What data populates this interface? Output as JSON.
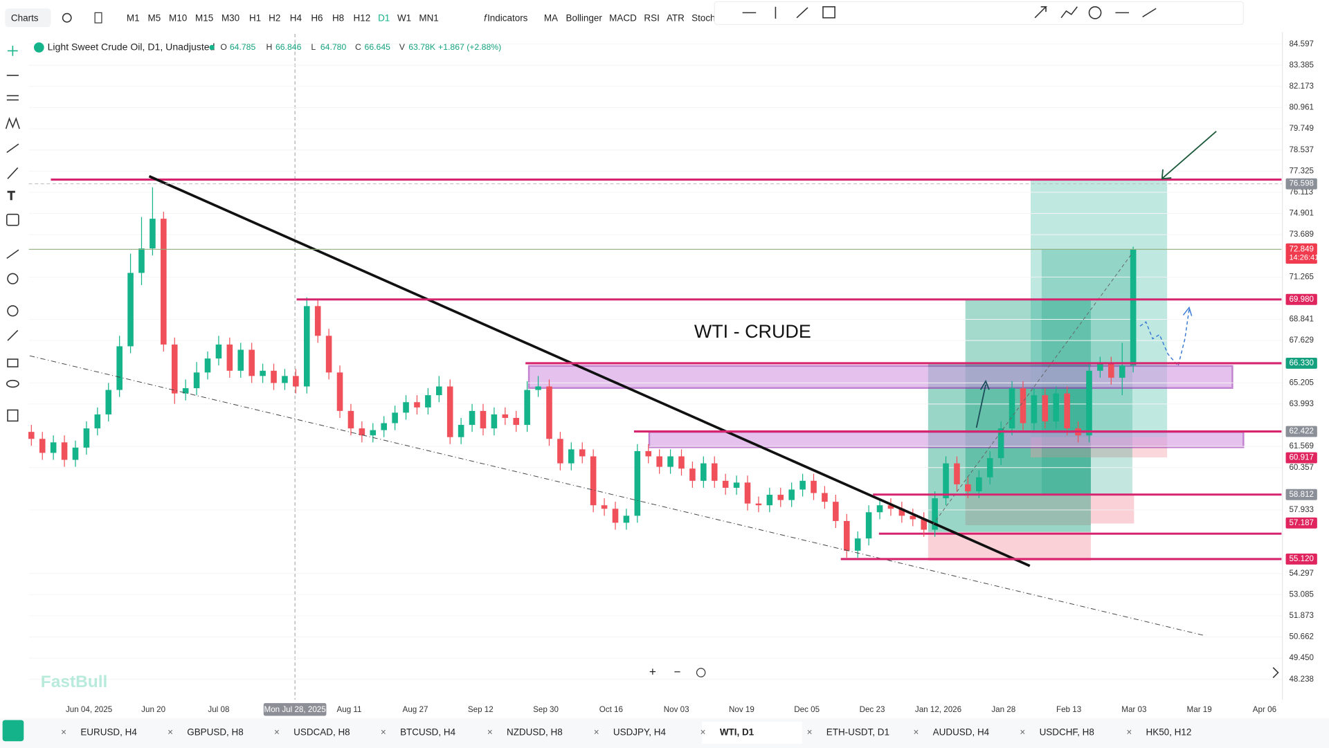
{
  "toolbar": {
    "charts": "Charts",
    "timeframes": [
      "M1",
      "M5",
      "M10",
      "M15",
      "M30",
      "H1",
      "H2",
      "H4",
      "H6",
      "H8",
      "H12",
      "D1",
      "W1",
      "MN1"
    ],
    "active_timeframe": "D1",
    "indicators": "Indicators",
    "studies": [
      "MA",
      "Bollinger",
      "MACD",
      "RSI",
      "ATR",
      "Stoch"
    ]
  },
  "legend": {
    "symbol": "Light Sweet Crude Oil, D1, Unadjusted",
    "items": [
      {
        "key": "O",
        "value": "64.785"
      },
      {
        "key": "H",
        "value": "66.846"
      },
      {
        "key": "L",
        "value": "64.780"
      },
      {
        "key": "C",
        "value": "66.645"
      },
      {
        "key": "V",
        "value": "63.78K"
      }
    ],
    "change": "+1.867 (+2.88%)"
  },
  "chart_data": {
    "type": "candlestick",
    "title": "WTI - CRUDE",
    "watermark": "FastBull",
    "up_color": "#14b38a",
    "down_color": "#f0505a",
    "candles": [
      [
        62.4,
        62.8,
        61.6,
        62.0
      ],
      [
        62.0,
        62.4,
        60.8,
        61.2
      ],
      [
        61.2,
        62.2,
        60.8,
        61.8
      ],
      [
        61.8,
        62.2,
        60.4,
        60.8
      ],
      [
        60.8,
        61.9,
        60.4,
        61.5
      ],
      [
        61.5,
        63.0,
        61.1,
        62.6
      ],
      [
        62.6,
        63.8,
        62.2,
        63.4
      ],
      [
        63.4,
        65.2,
        63.0,
        64.8
      ],
      [
        64.8,
        67.9,
        64.4,
        67.3
      ],
      [
        67.3,
        72.6,
        66.9,
        71.5
      ],
      [
        71.5,
        74.7,
        70.8,
        72.9
      ],
      [
        72.9,
        76.4,
        72.5,
        74.6
      ],
      [
        74.6,
        75.0,
        67.0,
        67.4
      ],
      [
        67.4,
        67.8,
        64.0,
        64.6
      ],
      [
        64.6,
        65.4,
        64.2,
        64.9
      ],
      [
        64.9,
        66.4,
        64.5,
        65.8
      ],
      [
        65.8,
        67.0,
        65.4,
        66.6
      ],
      [
        66.6,
        67.9,
        66.2,
        67.4
      ],
      [
        67.4,
        67.8,
        65.5,
        65.9
      ],
      [
        65.9,
        67.5,
        65.5,
        67.1
      ],
      [
        67.1,
        67.5,
        65.2,
        65.6
      ],
      [
        65.6,
        66.3,
        65.2,
        65.9
      ],
      [
        65.9,
        66.3,
        64.8,
        65.2
      ],
      [
        65.2,
        66.0,
        64.8,
        65.6
      ],
      [
        65.6,
        66.0,
        64.6,
        65.0
      ],
      [
        65.0,
        70.1,
        64.6,
        69.6
      ],
      [
        69.6,
        70.0,
        67.5,
        67.9
      ],
      [
        67.9,
        68.3,
        65.4,
        65.8
      ],
      [
        65.8,
        66.2,
        63.2,
        63.6
      ],
      [
        63.6,
        64.0,
        62.2,
        62.6
      ],
      [
        62.6,
        63.0,
        61.8,
        62.2
      ],
      [
        62.2,
        62.9,
        61.8,
        62.5
      ],
      [
        62.5,
        63.3,
        62.1,
        62.9
      ],
      [
        62.9,
        63.9,
        62.5,
        63.5
      ],
      [
        63.5,
        64.5,
        63.1,
        64.1
      ],
      [
        64.1,
        64.5,
        63.4,
        63.8
      ],
      [
        63.8,
        64.9,
        63.4,
        64.5
      ],
      [
        64.5,
        65.6,
        64.1,
        65.0
      ],
      [
        65.0,
        65.4,
        61.7,
        62.1
      ],
      [
        62.1,
        63.2,
        61.7,
        62.8
      ],
      [
        62.8,
        64.0,
        62.4,
        63.6
      ],
      [
        63.6,
        64.0,
        62.2,
        62.6
      ],
      [
        62.6,
        63.8,
        62.2,
        63.4
      ],
      [
        63.4,
        63.8,
        62.8,
        63.2
      ],
      [
        63.2,
        63.6,
        62.4,
        62.8
      ],
      [
        62.8,
        65.3,
        62.4,
        64.8
      ],
      [
        64.8,
        65.6,
        64.4,
        65.0
      ],
      [
        65.0,
        65.4,
        61.6,
        62.0
      ],
      [
        62.0,
        62.4,
        60.2,
        60.6
      ],
      [
        60.6,
        61.8,
        60.2,
        61.4
      ],
      [
        61.4,
        61.8,
        60.6,
        61.0
      ],
      [
        61.0,
        61.4,
        57.8,
        58.2
      ],
      [
        58.2,
        58.6,
        57.6,
        58.0
      ],
      [
        58.0,
        58.4,
        56.8,
        57.2
      ],
      [
        57.2,
        58.0,
        56.8,
        57.6
      ],
      [
        57.6,
        61.7,
        57.2,
        61.3
      ],
      [
        61.3,
        61.7,
        60.6,
        61.0
      ],
      [
        61.0,
        61.4,
        60.0,
        60.4
      ],
      [
        60.4,
        61.4,
        60.0,
        61.0
      ],
      [
        61.0,
        61.4,
        59.9,
        60.3
      ],
      [
        60.3,
        60.7,
        59.2,
        59.6
      ],
      [
        59.6,
        61.0,
        59.2,
        60.6
      ],
      [
        60.6,
        61.0,
        59.2,
        59.6
      ],
      [
        59.6,
        60.0,
        58.8,
        59.2
      ],
      [
        59.2,
        59.9,
        58.8,
        59.5
      ],
      [
        59.5,
        59.9,
        57.9,
        58.3
      ],
      [
        58.3,
        58.7,
        57.8,
        58.2
      ],
      [
        58.2,
        59.2,
        57.8,
        58.8
      ],
      [
        58.8,
        59.2,
        58.1,
        58.5
      ],
      [
        58.5,
        59.5,
        58.1,
        59.1
      ],
      [
        59.1,
        60.0,
        58.7,
        59.6
      ],
      [
        59.6,
        60.0,
        58.5,
        58.9
      ],
      [
        58.9,
        59.3,
        58.0,
        58.4
      ],
      [
        58.4,
        58.8,
        56.9,
        57.3
      ],
      [
        57.3,
        57.7,
        55.2,
        55.6
      ],
      [
        55.6,
        56.7,
        55.2,
        56.3
      ],
      [
        56.3,
        58.2,
        55.9,
        57.8
      ],
      [
        57.8,
        58.6,
        57.4,
        58.2
      ],
      [
        58.2,
        58.6,
        57.6,
        58.0
      ],
      [
        58.0,
        58.4,
        57.2,
        57.6
      ],
      [
        57.6,
        58.0,
        57.0,
        57.4
      ],
      [
        57.4,
        57.8,
        56.4,
        56.8
      ],
      [
        56.8,
        59.0,
        56.4,
        58.6
      ],
      [
        58.6,
        61.0,
        58.2,
        60.6
      ],
      [
        60.6,
        61.0,
        59.0,
        59.4
      ],
      [
        59.4,
        59.8,
        58.6,
        59.0
      ],
      [
        59.0,
        60.2,
        58.6,
        59.8
      ],
      [
        59.8,
        61.3,
        59.4,
        60.9
      ],
      [
        60.9,
        63.0,
        60.5,
        62.6
      ],
      [
        62.6,
        65.3,
        62.2,
        64.9
      ],
      [
        64.9,
        65.3,
        62.5,
        62.9
      ],
      [
        62.9,
        64.9,
        62.5,
        64.5
      ],
      [
        64.5,
        64.9,
        62.6,
        63.0
      ],
      [
        63.0,
        65.0,
        62.6,
        64.6
      ],
      [
        64.6,
        65.0,
        62.2,
        62.6
      ],
      [
        62.6,
        63.0,
        61.8,
        62.2
      ],
      [
        62.2,
        66.3,
        61.8,
        65.9
      ],
      [
        65.9,
        66.7,
        65.5,
        66.3
      ],
      [
        66.3,
        66.7,
        65.1,
        65.5
      ],
      [
        65.5,
        67.5,
        64.5,
        66.2
      ],
      [
        66.2,
        73.0,
        65.8,
        72.849
      ]
    ],
    "ylim": [
      47.07,
      85.18
    ],
    "yticks": [
      84.597,
      83.385,
      82.173,
      80.961,
      79.749,
      78.537,
      77.325,
      76.113,
      74.901,
      73.689,
      71.265,
      68.841,
      67.629,
      65.205,
      63.993,
      61.569,
      60.357,
      57.933,
      54.297,
      53.085,
      51.873,
      50.662,
      {
        "value": 49.45,
        "label": "49.450"
      },
      48.238
    ],
    "x_labels": [
      "Jun 04, 2025",
      "Jun 20",
      "Jul 08",
      "Aug 11",
      "Aug 27",
      "Sep 12",
      "Sep 30",
      "Oct 16",
      "Nov 03",
      "Nov 19",
      "Dec 05",
      "Dec 23",
      "Jan 12, 2026",
      "Jan 28",
      "Feb 13",
      "Mar 03",
      "Mar 19",
      "Apr 06"
    ],
    "crosshair_label": "Mon Jul 28, 2025",
    "price_labels": [
      {
        "value": 76.598,
        "color": "#8a8f98",
        "line": "dashed"
      },
      {
        "value": 72.849,
        "color": "#ef3b4d",
        "line": "price",
        "timer": "14:26:41"
      },
      {
        "value": 69.98,
        "label": "69.980",
        "color": "#e0245e",
        "line": "level"
      },
      {
        "value": 66.33,
        "label": "66.330",
        "color": "#12a07e",
        "line": "level"
      },
      {
        "value": 62.422,
        "color": "#8a8f98",
        "line": "level"
      },
      {
        "value": 60.917,
        "color": "#e0245e"
      },
      {
        "value": 58.812,
        "color": "#8a8f98",
        "line": "level"
      },
      {
        "value": 57.187,
        "color": "#e0245e"
      },
      {
        "value": 55.12,
        "label": "55.120",
        "color": "#e0245e",
        "line": "level"
      }
    ]
  },
  "tabs": [
    "EURUSD, H4",
    "GBPUSD, H8",
    "USDCAD, H8",
    "BTCUSD, H4",
    "NZDUSD, H8",
    "USDJPY, H4",
    "WTI, D1",
    "ETH-USDT, D1",
    "AUDUSD, H4",
    "USDCHF, H8",
    "HK50, H12"
  ],
  "active_tab": "WTI, D1"
}
